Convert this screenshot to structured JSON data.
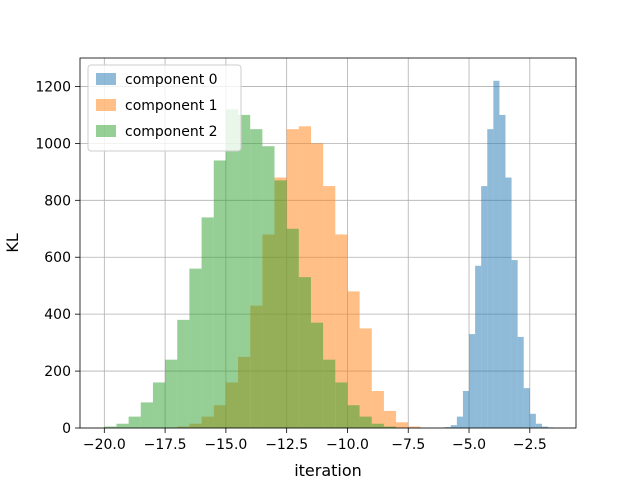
{
  "chart_data": {
    "type": "bar",
    "subtype": "overlapping-histogram",
    "title": "",
    "xlabel": "iteration",
    "ylabel": "KL",
    "xlim": [
      -21.0,
      -0.6
    ],
    "ylim": [
      0,
      1300
    ],
    "xticks": [
      -20.0,
      -17.5,
      -15.0,
      -12.5,
      -10.0,
      -7.5,
      -5.0,
      -2.5
    ],
    "xtick_labels": [
      "−20.0",
      "−17.5",
      "−15.0",
      "−12.5",
      "−10.0",
      "−7.5",
      "−5.0",
      "−2.5"
    ],
    "yticks": [
      0,
      200,
      400,
      600,
      800,
      1000,
      1200
    ],
    "ytick_labels": [
      "0",
      "200",
      "400",
      "600",
      "800",
      "1000",
      "1200"
    ],
    "grid": true,
    "legend_position": "top-left",
    "bar_alpha": 0.5,
    "series": [
      {
        "name": "component 0",
        "color": "#1f77b4",
        "bin_edges": [
          -6.0,
          -5.75,
          -5.5,
          -5.25,
          -5.0,
          -4.75,
          -4.5,
          -4.25,
          -4.0,
          -3.75,
          -3.5,
          -3.25,
          -3.0,
          -2.75,
          -2.5,
          -2.25,
          -2.0,
          -1.75,
          -1.5
        ],
        "counts": [
          3,
          10,
          40,
          130,
          330,
          570,
          850,
          1050,
          1220,
          1100,
          880,
          590,
          320,
          140,
          50,
          15,
          5,
          2
        ]
      },
      {
        "name": "component 1",
        "color": "#ff7f0e",
        "bin_edges": [
          -17.0,
          -16.5,
          -16.0,
          -15.5,
          -15.0,
          -14.5,
          -14.0,
          -13.5,
          -13.0,
          -12.5,
          -12.0,
          -11.5,
          -11.0,
          -10.5,
          -10.0,
          -9.5,
          -9.0,
          -8.5,
          -8.0,
          -7.5,
          -7.0
        ],
        "counts": [
          5,
          15,
          40,
          80,
          160,
          250,
          430,
          680,
          880,
          1050,
          1060,
          1000,
          850,
          680,
          480,
          350,
          130,
          60,
          20,
          5
        ]
      },
      {
        "name": "component 2",
        "color": "#2ca02c",
        "bin_edges": [
          -20.0,
          -19.5,
          -19.0,
          -18.5,
          -18.0,
          -17.5,
          -17.0,
          -16.5,
          -16.0,
          -15.5,
          -15.0,
          -14.5,
          -14.0,
          -13.5,
          -13.0,
          -12.5,
          -12.0,
          -11.5,
          -11.0,
          -10.5,
          -10.0,
          -9.5,
          -9.0,
          -8.5,
          -8.0
        ],
        "counts": [
          5,
          15,
          40,
          90,
          160,
          240,
          380,
          560,
          740,
          940,
          1120,
          1100,
          1050,
          990,
          870,
          700,
          530,
          370,
          240,
          160,
          80,
          40,
          15,
          5
        ]
      }
    ]
  }
}
